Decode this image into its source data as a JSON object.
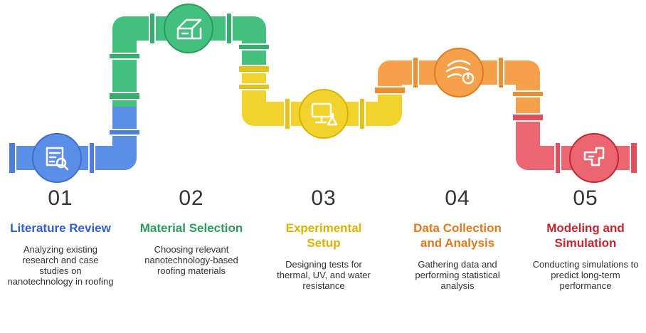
{
  "steps": [
    {
      "number": "01",
      "title": "Literature Review",
      "description": "Analyzing existing research and case studies on nanotechnology in roofing"
    },
    {
      "number": "02",
      "title": "Material Selection",
      "description": "Choosing relevant nanotechnology-based roofing materials"
    },
    {
      "number": "03",
      "title": "Experimental Setup",
      "description": "Designing tests for thermal, UV, and water resistance"
    },
    {
      "number": "04",
      "title": "Data Collection and Analysis",
      "description": "Gathering data and performing statistical analysis"
    },
    {
      "number": "05",
      "title": "Modeling and Simulation",
      "description": "Conducting simulations to predict long-term performance"
    }
  ]
}
